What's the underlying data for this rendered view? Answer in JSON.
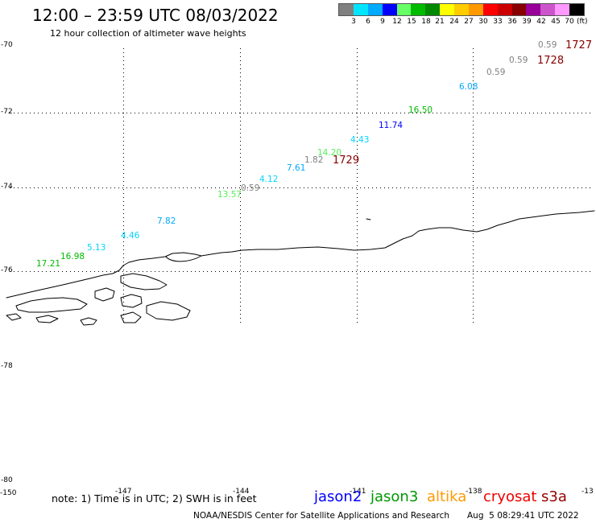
{
  "header": {
    "title": "12:00 – 23:59 UTC 08/03/2022",
    "subtitle": "12 hour collection of altimeter wave heights"
  },
  "colorbar": {
    "colors": [
      "#808080",
      "#00e5ff",
      "#00aaff",
      "#0000ff",
      "#66ff66",
      "#00bb00",
      "#008800",
      "#ffff00",
      "#ffcc00",
      "#ff9900",
      "#ff0000",
      "#cc0000",
      "#880000",
      "#990099",
      "#cc55cc",
      "#ff99ff",
      "#000000"
    ],
    "labels": [
      "3",
      "6",
      "9",
      "12",
      "15",
      "18",
      "21",
      "24",
      "27",
      "30",
      "33",
      "36",
      "39",
      "42",
      "45",
      "70"
    ],
    "unit": "(ft)"
  },
  "map": {
    "lat_labels": [
      "-70",
      "-72",
      "-74",
      "-76",
      "-78",
      "-80"
    ],
    "lon_labels": [
      "-150",
      "-147",
      "-144",
      "-141",
      "-138",
      "-13"
    ],
    "observations": [
      {
        "value": "0.59",
        "color": "#808080"
      },
      {
        "value": "0.59",
        "color": "#808080"
      },
      {
        "value": "0.59",
        "color": "#808080"
      },
      {
        "value": "6.08",
        "color": "#00aaff"
      },
      {
        "value": "16.50",
        "color": "#00bb00"
      },
      {
        "value": "11.74",
        "color": "#0000ff"
      },
      {
        "value": "4.43",
        "color": "#00d5ff"
      },
      {
        "value": "14.20",
        "color": "#55ee55"
      },
      {
        "value": "1.82",
        "color": "#808080"
      },
      {
        "value": "7.61",
        "color": "#00aaff"
      },
      {
        "value": "4.12",
        "color": "#00d5ff"
      },
      {
        "value": "0.59",
        "color": "#808080"
      },
      {
        "value": "13.57",
        "color": "#55ee55"
      },
      {
        "value": "7.82",
        "color": "#00aaff"
      },
      {
        "value": "4.46",
        "color": "#00d5ff"
      },
      {
        "value": "5.13",
        "color": "#00d5ff"
      },
      {
        "value": "16.98",
        "color": "#00bb00"
      },
      {
        "value": "17.21",
        "color": "#00bb00"
      }
    ],
    "times": [
      {
        "value": "1727",
        "color": "#880000"
      },
      {
        "value": "1728",
        "color": "#880000"
      },
      {
        "value": "1729",
        "color": "#880000"
      }
    ]
  },
  "footer": {
    "note": "note: 1) Time is in UTC; 2) SWH is in feet",
    "satellites": [
      {
        "name": "jason2",
        "color": "#0000ff"
      },
      {
        "name": "jason3",
        "color": "#009900"
      },
      {
        "name": "altika",
        "color": "#ff9900"
      },
      {
        "name": "cryosat",
        "color": "#ee0000"
      },
      {
        "name": "s3a",
        "color": "#990000"
      }
    ],
    "credit": "NOAA/NESDIS Center for Satellite Applications and Research",
    "timestamp": "Aug  5 08:29:41 UTC 2022"
  }
}
